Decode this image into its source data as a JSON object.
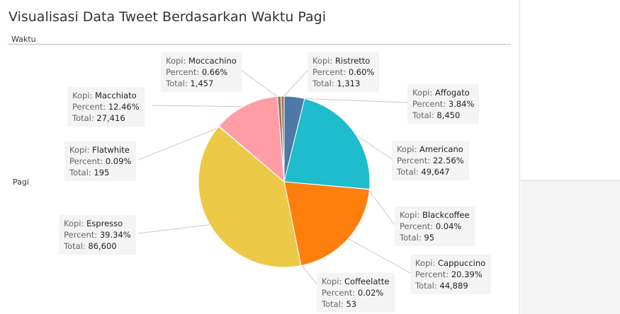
{
  "title": "Visualisasi Data Tweet Berdasarkan Waktu Pagi",
  "column_header": "Waktu",
  "row_label": "Pagi",
  "tooltip_field_labels": {
    "kopi": "Kopi: ",
    "percent": "Percent: ",
    "total": "Total: "
  },
  "chart_data": {
    "type": "pie",
    "title": "Visualisasi Data Tweet Berdasarkan Waktu Pagi",
    "slices": [
      {
        "name": "Ristretto",
        "percent": "0.60%",
        "total": "1,313",
        "value": 0.6,
        "color": "#a37c5b"
      },
      {
        "name": "Affogato",
        "percent": "3.84%",
        "total": "8,450",
        "value": 3.84,
        "color": "#4e79a7"
      },
      {
        "name": "Americano",
        "percent": "22.56%",
        "total": "49,647",
        "value": 22.56,
        "color": "#1ebccd"
      },
      {
        "name": "Blackcoffee",
        "percent": "0.04%",
        "total": "95",
        "value": 0.04,
        "color": "#6f4e37"
      },
      {
        "name": "Cappuccino",
        "percent": "20.39%",
        "total": "44,889",
        "value": 20.39,
        "color": "#ff7f0e"
      },
      {
        "name": "Coffeelatte",
        "percent": "0.02%",
        "total": "53",
        "value": 0.02,
        "color": "#8c6d3b"
      },
      {
        "name": "Espresso",
        "percent": "39.34%",
        "total": "86,600",
        "value": 39.34,
        "color": "#edc948"
      },
      {
        "name": "Flatwhite",
        "percent": "0.09%",
        "total": "195",
        "value": 0.09,
        "color": "#c9b27c"
      },
      {
        "name": "Macchiato",
        "percent": "12.46%",
        "total": "27,416",
        "value": 12.46,
        "color": "#ff9da7"
      },
      {
        "name": "Moccachino",
        "percent": "0.66%",
        "total": "1,457",
        "value": 0.66,
        "color": "#9c755f"
      }
    ]
  }
}
